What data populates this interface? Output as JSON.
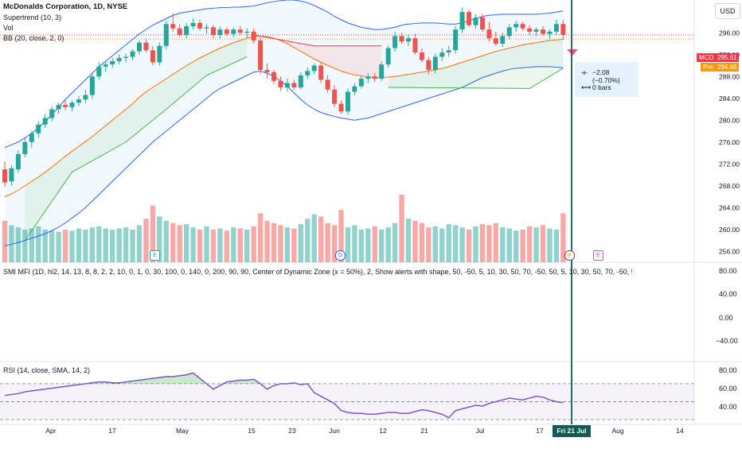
{
  "header": {
    "symbol_title": "McDonalds Corporation, 1D, NYSE",
    "indicators": [
      "Supertrend (10, 3)",
      "Vol",
      "BB (20, close, 2, 0)"
    ],
    "currency_button": "USD"
  },
  "tooltip": {
    "change": "−2.08 (−0.70%)",
    "bars": "0 bars"
  },
  "price_tags": {
    "mcd_label": "MCD",
    "mcd_price": "295.61",
    "pre_label": "Pre",
    "pre_price": "294.86",
    "colors": {
      "mcd": "#f23645",
      "pre": "#ff9800"
    }
  },
  "smi_panel": {
    "label": "SMI MFI (1D, hl2, 14, 13, 8, 8, 2, 2, 10, 0, 1, 0, 30, 100, 0, 140, 0, 200, 90, 90, Center of Dynamic Zone (x = 50%), 2, Show alerts with shape, 50, -50, 5, 10, 30, 50, 70, -50, 50, 5, 10, 30, 50, 70, -50, 50, 5, 10, 15, 20, 25) loading...",
    "ticks": [
      "80.00",
      "40.00",
      "0.00",
      "−40.00"
    ]
  },
  "rsi_panel": {
    "label": "RSI (14, close, SMA, 14, 2)",
    "ticks": [
      "80.00",
      "60.00",
      "40.00"
    ]
  },
  "events": [
    "E",
    "D",
    "E"
  ],
  "crosshair_date": "Fri 21 Jul '23",
  "chart_data": {
    "type": "candlestick",
    "title": "McDonalds Corporation, 1D, NYSE",
    "x_ticks": [
      "Apr",
      "17",
      "May",
      "15",
      "23",
      "Jun",
      "12",
      "21",
      "Jul",
      "17",
      "Aug",
      "14"
    ],
    "y_ticks": [
      300,
      296,
      292,
      288,
      284,
      280,
      276,
      272,
      268,
      264,
      260,
      256
    ],
    "ylim": [
      254,
      302
    ],
    "candles": [
      {
        "o": 271.0,
        "h": 272.5,
        "l": 267.8,
        "c": 268.6
      },
      {
        "o": 268.8,
        "h": 271.8,
        "l": 268.0,
        "c": 271.2
      },
      {
        "o": 271.0,
        "h": 274.5,
        "l": 270.4,
        "c": 273.8
      },
      {
        "o": 273.8,
        "h": 276.8,
        "l": 273.2,
        "c": 276.0
      },
      {
        "o": 276.0,
        "h": 278.0,
        "l": 275.0,
        "c": 277.6
      },
      {
        "o": 277.6,
        "h": 279.8,
        "l": 276.8,
        "c": 279.2
      },
      {
        "o": 279.2,
        "h": 281.2,
        "l": 278.6,
        "c": 280.4
      },
      {
        "o": 280.4,
        "h": 282.6,
        "l": 279.8,
        "c": 282.0
      },
      {
        "o": 282.0,
        "h": 283.2,
        "l": 281.2,
        "c": 282.8
      },
      {
        "o": 282.8,
        "h": 283.8,
        "l": 281.8,
        "c": 282.4
      },
      {
        "o": 282.4,
        "h": 283.6,
        "l": 281.6,
        "c": 283.2
      },
      {
        "o": 283.2,
        "h": 284.4,
        "l": 282.6,
        "c": 283.8
      },
      {
        "o": 283.8,
        "h": 285.6,
        "l": 283.2,
        "c": 284.6
      },
      {
        "o": 284.6,
        "h": 288.6,
        "l": 284.0,
        "c": 288.0
      },
      {
        "o": 288.0,
        "h": 290.6,
        "l": 287.4,
        "c": 289.8
      },
      {
        "o": 289.8,
        "h": 290.8,
        "l": 288.8,
        "c": 290.2
      },
      {
        "o": 290.2,
        "h": 291.4,
        "l": 289.6,
        "c": 290.8
      },
      {
        "o": 290.8,
        "h": 292.0,
        "l": 290.2,
        "c": 291.4
      },
      {
        "o": 291.4,
        "h": 292.2,
        "l": 290.6,
        "c": 291.6
      },
      {
        "o": 291.6,
        "h": 293.0,
        "l": 291.0,
        "c": 292.6
      },
      {
        "o": 292.6,
        "h": 294.6,
        "l": 292.0,
        "c": 294.2
      },
      {
        "o": 294.2,
        "h": 294.8,
        "l": 292.4,
        "c": 292.8
      },
      {
        "o": 292.8,
        "h": 293.6,
        "l": 290.0,
        "c": 290.6
      },
      {
        "o": 290.6,
        "h": 294.2,
        "l": 290.0,
        "c": 293.6
      },
      {
        "o": 293.6,
        "h": 298.2,
        "l": 293.0,
        "c": 297.6
      },
      {
        "o": 297.6,
        "h": 299.6,
        "l": 296.2,
        "c": 296.8
      },
      {
        "o": 296.8,
        "h": 297.6,
        "l": 295.2,
        "c": 295.6
      },
      {
        "o": 295.6,
        "h": 297.8,
        "l": 295.0,
        "c": 297.2
      },
      {
        "o": 297.2,
        "h": 298.6,
        "l": 296.6,
        "c": 297.8
      },
      {
        "o": 297.8,
        "h": 298.4,
        "l": 296.4,
        "c": 296.8
      },
      {
        "o": 296.8,
        "h": 297.6,
        "l": 295.8,
        "c": 297.0
      },
      {
        "o": 297.0,
        "h": 297.4,
        "l": 295.0,
        "c": 295.6
      },
      {
        "o": 295.6,
        "h": 297.2,
        "l": 295.0,
        "c": 296.6
      },
      {
        "o": 296.6,
        "h": 297.0,
        "l": 295.4,
        "c": 295.8
      },
      {
        "o": 295.8,
        "h": 297.0,
        "l": 295.2,
        "c": 296.6
      },
      {
        "o": 296.6,
        "h": 297.2,
        "l": 295.6,
        "c": 296.0
      },
      {
        "o": 296.0,
        "h": 296.8,
        "l": 295.0,
        "c": 296.2
      },
      {
        "o": 296.2,
        "h": 296.8,
        "l": 294.0,
        "c": 294.6
      },
      {
        "o": 294.6,
        "h": 295.2,
        "l": 288.4,
        "c": 289.2
      },
      {
        "o": 289.2,
        "h": 290.4,
        "l": 287.6,
        "c": 288.8
      },
      {
        "o": 288.8,
        "h": 289.2,
        "l": 286.6,
        "c": 287.2
      },
      {
        "o": 287.2,
        "h": 288.0,
        "l": 285.4,
        "c": 286.0
      },
      {
        "o": 286.0,
        "h": 287.6,
        "l": 285.2,
        "c": 286.8
      },
      {
        "o": 286.8,
        "h": 287.4,
        "l": 285.6,
        "c": 286.0
      },
      {
        "o": 286.0,
        "h": 288.8,
        "l": 285.6,
        "c": 288.2
      },
      {
        "o": 288.2,
        "h": 289.6,
        "l": 287.6,
        "c": 289.0
      },
      {
        "o": 289.0,
        "h": 290.4,
        "l": 288.4,
        "c": 290.0
      },
      {
        "o": 290.0,
        "h": 290.6,
        "l": 286.8,
        "c": 287.4
      },
      {
        "o": 287.4,
        "h": 288.2,
        "l": 285.0,
        "c": 285.6
      },
      {
        "o": 285.6,
        "h": 286.4,
        "l": 282.4,
        "c": 283.0
      },
      {
        "o": 283.0,
        "h": 283.6,
        "l": 281.2,
        "c": 281.6
      },
      {
        "o": 281.6,
        "h": 285.8,
        "l": 281.0,
        "c": 285.2
      },
      {
        "o": 285.2,
        "h": 286.8,
        "l": 284.6,
        "c": 286.2
      },
      {
        "o": 286.2,
        "h": 288.2,
        "l": 285.8,
        "c": 287.6
      },
      {
        "o": 287.6,
        "h": 288.6,
        "l": 286.8,
        "c": 288.0
      },
      {
        "o": 288.0,
        "h": 288.6,
        "l": 287.0,
        "c": 287.6
      },
      {
        "o": 287.6,
        "h": 290.8,
        "l": 287.2,
        "c": 290.2
      },
      {
        "o": 290.2,
        "h": 293.6,
        "l": 289.6,
        "c": 293.2
      },
      {
        "o": 293.2,
        "h": 296.2,
        "l": 292.6,
        "c": 295.4
      },
      {
        "o": 295.4,
        "h": 296.0,
        "l": 294.0,
        "c": 294.4
      },
      {
        "o": 294.4,
        "h": 295.6,
        "l": 293.6,
        "c": 295.0
      },
      {
        "o": 295.0,
        "h": 295.8,
        "l": 292.0,
        "c": 292.4
      },
      {
        "o": 292.4,
        "h": 293.2,
        "l": 290.6,
        "c": 291.0
      },
      {
        "o": 291.0,
        "h": 291.6,
        "l": 288.4,
        "c": 289.2
      },
      {
        "o": 289.2,
        "h": 292.2,
        "l": 288.6,
        "c": 291.6
      },
      {
        "o": 291.6,
        "h": 293.2,
        "l": 290.8,
        "c": 292.4
      },
      {
        "o": 292.4,
        "h": 293.6,
        "l": 291.6,
        "c": 292.8
      },
      {
        "o": 292.8,
        "h": 297.2,
        "l": 292.2,
        "c": 296.6
      },
      {
        "o": 296.6,
        "h": 300.6,
        "l": 296.0,
        "c": 299.8
      },
      {
        "o": 299.8,
        "h": 300.2,
        "l": 297.0,
        "c": 297.4
      },
      {
        "o": 297.4,
        "h": 299.4,
        "l": 296.8,
        "c": 298.8
      },
      {
        "o": 298.8,
        "h": 299.4,
        "l": 296.2,
        "c": 296.6
      },
      {
        "o": 296.6,
        "h": 298.0,
        "l": 294.4,
        "c": 295.0
      },
      {
        "o": 295.0,
        "h": 296.2,
        "l": 293.6,
        "c": 294.0
      },
      {
        "o": 294.0,
        "h": 296.0,
        "l": 293.4,
        "c": 295.4
      },
      {
        "o": 295.4,
        "h": 297.6,
        "l": 294.8,
        "c": 297.0
      },
      {
        "o": 297.0,
        "h": 298.2,
        "l": 296.2,
        "c": 297.6
      },
      {
        "o": 297.6,
        "h": 298.0,
        "l": 296.4,
        "c": 296.8
      },
      {
        "o": 296.8,
        "h": 297.4,
        "l": 295.6,
        "c": 296.2
      },
      {
        "o": 296.2,
        "h": 297.0,
        "l": 295.4,
        "c": 296.6
      },
      {
        "o": 296.6,
        "h": 297.2,
        "l": 295.4,
        "c": 295.8
      },
      {
        "o": 295.8,
        "h": 296.6,
        "l": 294.8,
        "c": 296.2
      },
      {
        "o": 296.2,
        "h": 298.4,
        "l": 295.6,
        "c": 297.6
      },
      {
        "o": 297.6,
        "h": 298.4,
        "l": 294.8,
        "c": 295.61
      }
    ],
    "volume": [
      38,
      34,
      32,
      30,
      31,
      33,
      30,
      29,
      28,
      30,
      29,
      31,
      30,
      32,
      33,
      31,
      30,
      31,
      32,
      30,
      34,
      40,
      52,
      42,
      38,
      36,
      34,
      35,
      32,
      30,
      33,
      30,
      31,
      29,
      32,
      31,
      30,
      33,
      45,
      38,
      36,
      34,
      32,
      31,
      35,
      40,
      44,
      42,
      36,
      34,
      48,
      32,
      34,
      30,
      31,
      33,
      30,
      32,
      36,
      62,
      40,
      38,
      36,
      32,
      33,
      31,
      35,
      34,
      32,
      30,
      33,
      35,
      34,
      36,
      32,
      31,
      29,
      30,
      33,
      32,
      34,
      31,
      30,
      45
    ],
    "supertrend": [
      {
        "x": 3,
        "y": 258
      },
      {
        "x": 10,
        "y": 270.5
      },
      {
        "x": 18,
        "y": 276
      },
      {
        "x": 24,
        "y": 282
      },
      {
        "x": 30,
        "y": 288.2
      },
      {
        "x": 36,
        "y": 291.6
      },
      {
        "x": 37,
        "y": 295.6
      },
      {
        "x": 46,
        "y": 293.6
      },
      {
        "x": 56,
        "y": 293.6
      },
      {
        "x": 57,
        "y": 286.0
      },
      {
        "x": 78,
        "y": 285.8
      },
      {
        "x": 83,
        "y": 289.5
      }
    ],
    "bb_mid": [
      266,
      266.5,
      267.2,
      268,
      268.8,
      269.6,
      270.5,
      271.4,
      272.4,
      273.4,
      274.3,
      275.2,
      276.1,
      277.0,
      278.0,
      279.0,
      280.0,
      281.0,
      282.0,
      283.0,
      284.2,
      285.2,
      286.0,
      286.8,
      287.6,
      288.4,
      289.2,
      290.0,
      290.7,
      291.4,
      292.0,
      292.6,
      293.2,
      293.7,
      294.2,
      294.6,
      295.0,
      295.3,
      295.4,
      295.3,
      295.0,
      294.6,
      294.0,
      293.3,
      292.6,
      291.9,
      291.2,
      290.6,
      290.0,
      289.5,
      289.0,
      288.6,
      288.3,
      288.1,
      287.9,
      287.8,
      287.8,
      287.9,
      288.0,
      288.2,
      288.4,
      288.6,
      288.8,
      289.0,
      289.2,
      289.5,
      289.8,
      290.2,
      290.6,
      291.0,
      291.4,
      291.8,
      292.2,
      292.6,
      292.9,
      293.2,
      293.5,
      293.8,
      294.0,
      294.2,
      294.4,
      294.6,
      294.7,
      294.8
    ],
    "bb_upper": [
      275,
      275.5,
      276,
      276.8,
      277.6,
      278.6,
      279.8,
      281.0,
      282.4,
      283.8,
      285.0,
      286.2,
      287.4,
      288.6,
      289.8,
      290.8,
      291.8,
      292.8,
      293.8,
      294.8,
      295.8,
      296.6,
      297.4,
      298.0,
      298.6,
      299.2,
      299.6,
      299.8,
      300.0,
      300.2,
      300.4,
      300.5,
      300.6,
      300.6,
      300.7,
      300.7,
      300.8,
      300.9,
      301.2,
      301.5,
      301.7,
      301.9,
      302.0,
      302.0,
      301.8,
      301.5,
      301.0,
      300.4,
      299.8,
      299.0,
      298.4,
      297.8,
      297.4,
      297.0,
      296.8,
      296.6,
      296.6,
      296.8,
      297.0,
      297.4,
      297.6,
      297.7,
      297.8,
      297.8,
      297.8,
      297.7,
      297.6,
      297.6,
      297.8,
      298.2,
      298.6,
      299.0,
      299.2,
      299.3,
      299.4,
      299.4,
      299.4,
      299.4,
      299.4,
      299.4,
      299.5,
      299.6,
      299.8,
      300.0
    ],
    "bb_lower": [
      257,
      257.3,
      257.6,
      258.0,
      258.4,
      258.8,
      259.2,
      259.8,
      260.4,
      261.2,
      262.1,
      263.0,
      264.0,
      265.2,
      266.4,
      267.6,
      268.8,
      270.0,
      271.2,
      272.4,
      273.6,
      274.8,
      276.0,
      277.0,
      278.0,
      279.0,
      280.0,
      281.0,
      282.0,
      283.0,
      284.0,
      285.0,
      285.8,
      286.4,
      287.0,
      287.6,
      288.2,
      288.8,
      289.0,
      288.6,
      288.0,
      287.2,
      286.2,
      285.0,
      283.8,
      282.8,
      282.0,
      281.4,
      281.0,
      280.7,
      280.4,
      280.2,
      280.0,
      280.2,
      280.4,
      280.8,
      281.2,
      281.6,
      282.0,
      282.4,
      282.8,
      283.2,
      283.6,
      284.0,
      284.4,
      284.8,
      285.2,
      285.6,
      286.0,
      286.6,
      287.2,
      287.8,
      288.2,
      288.6,
      289.0,
      289.3,
      289.5,
      289.6,
      289.7,
      289.8,
      289.8,
      289.8,
      289.7,
      289.6
    ],
    "rsi": {
      "ylim": [
        30,
        85
      ],
      "values": [
        57,
        58,
        59,
        61,
        62,
        63,
        64,
        65,
        66,
        67,
        68,
        69,
        70,
        71,
        72,
        72,
        71,
        71,
        72,
        73,
        74,
        75,
        76,
        77,
        78,
        78,
        79,
        80,
        82,
        76,
        70,
        64,
        68,
        72,
        73,
        74,
        74,
        75,
        70,
        64,
        68,
        70,
        70,
        71,
        69,
        70,
        60,
        56,
        52,
        48,
        40,
        38,
        37,
        37,
        36,
        36,
        37,
        38,
        38,
        37,
        37,
        39,
        41,
        40,
        38,
        36,
        32,
        40,
        42,
        44,
        46,
        45,
        48,
        50,
        52,
        54,
        53,
        52,
        54,
        56,
        55,
        52,
        50,
        49
      ]
    }
  }
}
